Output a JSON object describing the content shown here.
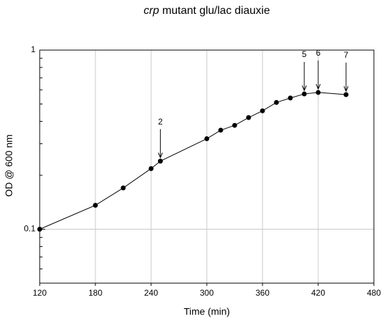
{
  "chart_data": {
    "type": "line",
    "title": [
      "crp",
      "mutant glu/lac diauxie"
    ],
    "x_label": "Time (min)",
    "y_label": "OD @ 600 nm",
    "x": [
      120,
      180,
      210,
      240,
      250,
      300,
      315,
      330,
      345,
      360,
      375,
      390,
      405,
      420,
      450
    ],
    "series": [
      {
        "name": "OD",
        "color": "#000000",
        "values": [
          0.1,
          0.136,
          0.17,
          0.218,
          0.24,
          0.32,
          0.357,
          0.38,
          0.42,
          0.458,
          0.51,
          0.54,
          0.569,
          0.58,
          0.564
        ]
      }
    ],
    "xlim": [
      120,
      480
    ],
    "xticks": [
      120,
      180,
      240,
      300,
      360,
      420,
      480
    ],
    "ylim": [
      0.05,
      1
    ],
    "yticks": [
      0.1,
      1
    ],
    "yminorticks": [
      0.05,
      0.06,
      0.07,
      0.08,
      0.09,
      0.2,
      0.3,
      0.4,
      0.5,
      0.6,
      0.7,
      0.8,
      0.9
    ],
    "log_y": true,
    "grid": true,
    "annotations": [
      {
        "label": "2",
        "x": 250
      },
      {
        "label": "5",
        "x": 405
      },
      {
        "label": "6",
        "x": 420
      },
      {
        "label": "7",
        "x": 450
      }
    ]
  }
}
